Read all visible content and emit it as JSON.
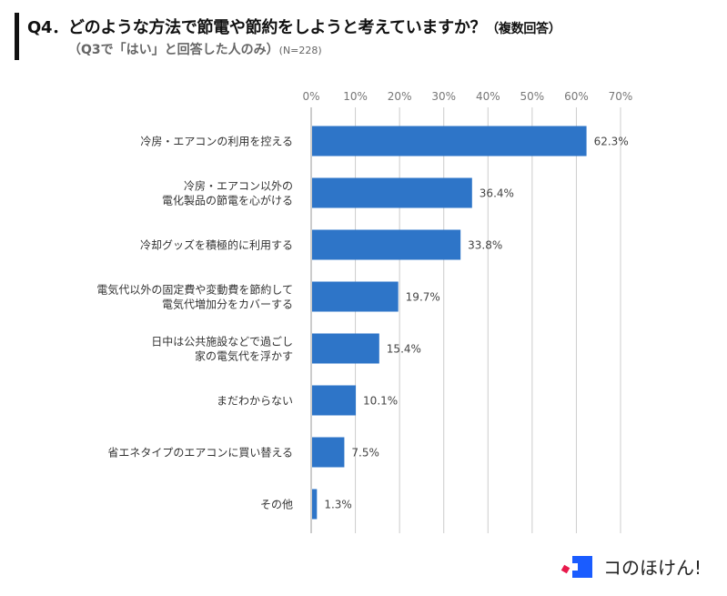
{
  "header": {
    "title": "Q4．どのような方法で節電や節約をしようと考えていますか？",
    "title_note": "（複数回答）",
    "subtitle": "（Q3で「はい」と回答した人のみ）",
    "sample": "(N=228)"
  },
  "logo": {
    "text": "コのほけん!"
  },
  "chart_data": {
    "type": "bar",
    "orientation": "horizontal",
    "categories": [
      [
        "冷房・エアコンの利用を控える"
      ],
      [
        "冷房・エアコン以外の",
        "電化製品の節電を心がける"
      ],
      [
        "冷却グッズを積極的に利用する"
      ],
      [
        "電気代以外の固定費や変動費を節約して",
        "電気代増加分をカバーする"
      ],
      [
        "日中は公共施設などで過ごし",
        "家の電気代を浮かす"
      ],
      [
        "まだわからない"
      ],
      [
        "省エネタイプのエアコンに買い替える"
      ],
      [
        "その他"
      ]
    ],
    "values": [
      62.3,
      36.4,
      33.8,
      19.7,
      15.4,
      10.1,
      7.5,
      1.3
    ],
    "data_labels": [
      "62.3%",
      "36.4%",
      "33.8%",
      "19.7%",
      "15.4%",
      "10.1%",
      "7.5%",
      "1.3%"
    ],
    "xticks": [
      "0%",
      "10%",
      "20%",
      "30%",
      "40%",
      "50%",
      "60%",
      "70%"
    ],
    "xlim": [
      0,
      70
    ],
    "grid": true,
    "bar_color": "#2e75c8",
    "axis_position": "top"
  }
}
